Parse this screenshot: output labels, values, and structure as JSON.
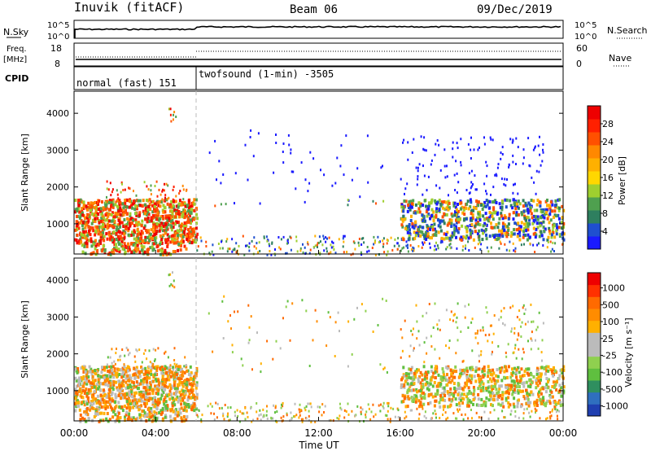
{
  "header": {
    "station": "Inuvik (fitACF)",
    "beam": "Beam 06",
    "date": "09/Dec/2019"
  },
  "strips": {
    "nsky_label": "N.Sky",
    "nsearch_label": "N.Search",
    "nsky_ticks": [
      "10^5",
      "10^0"
    ],
    "nsearch_ticks": [
      "10^5",
      "10^0"
    ],
    "freq_label": "Freq.",
    "freq_unit": "[MHz]",
    "freq_ticks": [
      "18",
      "8"
    ],
    "nave_label": "Nave",
    "nave_ticks": [
      "60",
      "0"
    ],
    "cpid_label": "CPID",
    "cpid_segments": [
      "normal (fast) 151",
      "twofsound (1-min) -3505"
    ]
  },
  "chart_data": [
    {
      "type": "heatmap",
      "panel": "power",
      "ylabel": "Slant Range [km]",
      "xlabel": "Time UT",
      "x_ticks": [
        "00:00",
        "04:00",
        "08:00",
        "12:00",
        "16:00",
        "20:00",
        "00:00"
      ],
      "y_ticks": [
        "1000",
        "2000",
        "3000",
        "4000"
      ],
      "colorbar_label": "Power [dB]",
      "colorbar_ticks": [
        "4",
        "8",
        "12",
        "16",
        "20",
        "24",
        "28"
      ],
      "colorbar_colors": [
        "#1a1aff",
        "#1f4fcf",
        "#2e7f5f",
        "#4fa04f",
        "#9fcf2f",
        "#ffd700",
        "#ffb000",
        "#ff8800",
        "#ff5000",
        "#ff2000",
        "#ee0000"
      ],
      "xlim_hours": [
        0,
        24
      ],
      "ylim_km": [
        180,
        4600
      ]
    },
    {
      "type": "heatmap",
      "panel": "velocity",
      "ylabel": "Slant Range [km]",
      "xlabel": "Time UT",
      "x_ticks": [
        "00:00",
        "04:00",
        "08:00",
        "12:00",
        "16:00",
        "20:00",
        "00:00"
      ],
      "y_ticks": [
        "1000",
        "2000",
        "3000",
        "4000"
      ],
      "colorbar_label": "Velocity [m s⁻¹]",
      "colorbar_ticks": [
        "1000",
        "500",
        "100",
        "25",
        "-25",
        "-100",
        "-500",
        "-1000"
      ],
      "colorbar_colors": [
        "#1f3fb0",
        "#2f6fbf",
        "#2f8f5f",
        "#5fbf3f",
        "#8fd04f",
        "#bbbbbb",
        "#bbbbbb",
        "#ffb000",
        "#ff8c00",
        "#ff6a00",
        "#ff3000",
        "#ee0000"
      ],
      "xlim_hours": [
        0,
        24
      ],
      "ylim_km": [
        180,
        4600
      ]
    }
  ],
  "footer": {
    "x_axis_title": "Time UT"
  }
}
